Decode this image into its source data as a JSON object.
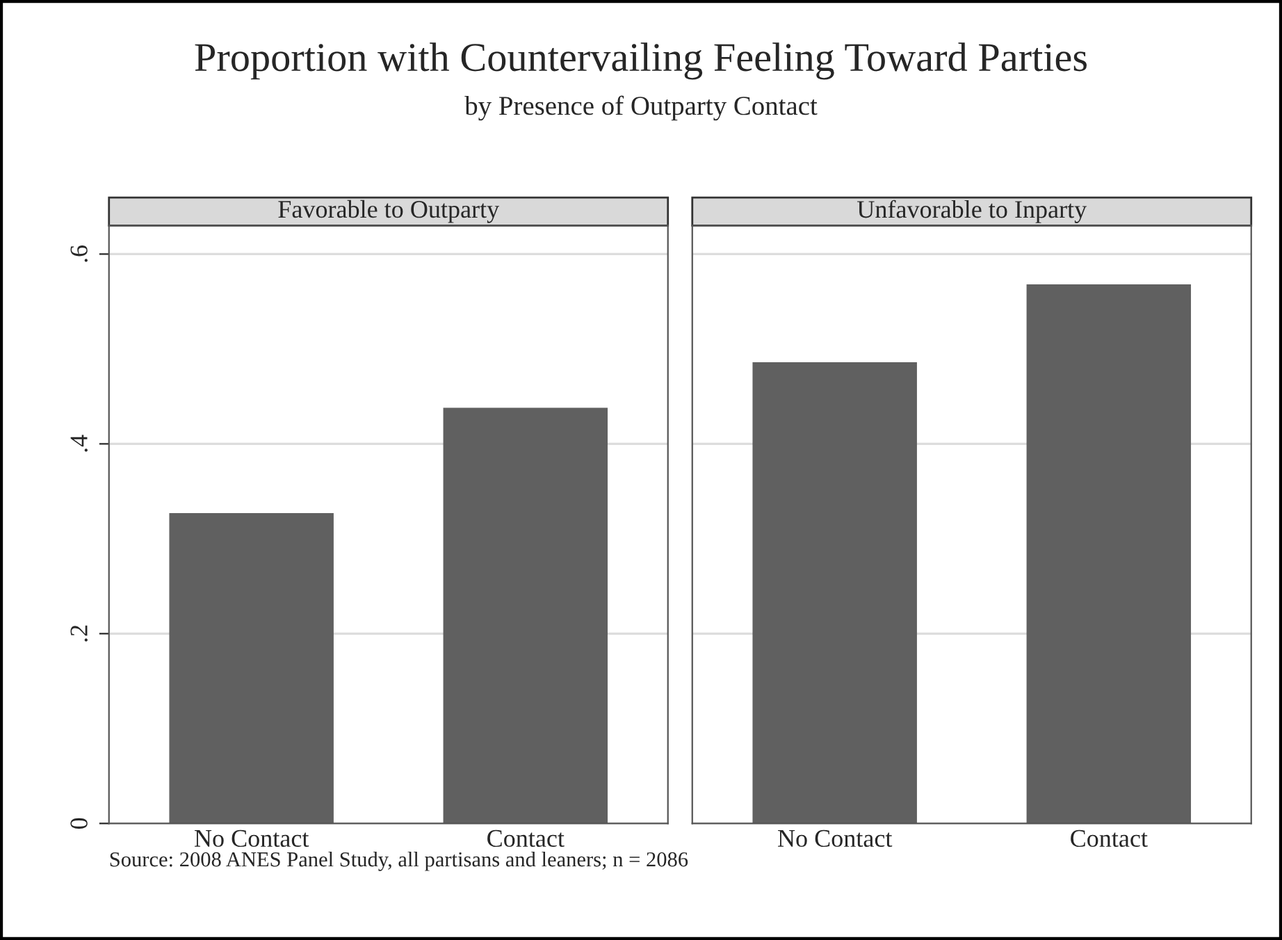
{
  "chart_data": [
    {
      "type": "other",
      "title": "Proportion with Countervailing Feeling Toward Parties",
      "subtitle": "by Presence of Outparty Contact",
      "annotations": [
        "Source: 2008 ANES Panel Study, all partisans and leaners; n = 2086"
      ]
    },
    {
      "type": "bar",
      "title": "Favorable to Outparty",
      "categories": [
        "No Contact",
        "Contact"
      ],
      "values": [
        0.327,
        0.438
      ],
      "color": "#606060",
      "ylim": [
        0,
        0.63
      ],
      "yticks": [
        {
          "value": 0,
          "label": "0"
        },
        {
          "value": 0.2,
          "label": ".2"
        },
        {
          "value": 0.4,
          "label": ".4"
        },
        {
          "value": 0.6,
          "label": ".6"
        }
      ],
      "grid": "y"
    },
    {
      "type": "bar",
      "title": "Unfavorable to Inparty",
      "categories": [
        "No Contact",
        "Contact"
      ],
      "values": [
        0.486,
        0.568
      ],
      "color": "#606060",
      "ylim": [
        0,
        0.63
      ],
      "yticks": [
        0,
        0.2,
        0.4,
        0.6
      ],
      "grid": "y",
      "tick_labels": "x"
    }
  ]
}
